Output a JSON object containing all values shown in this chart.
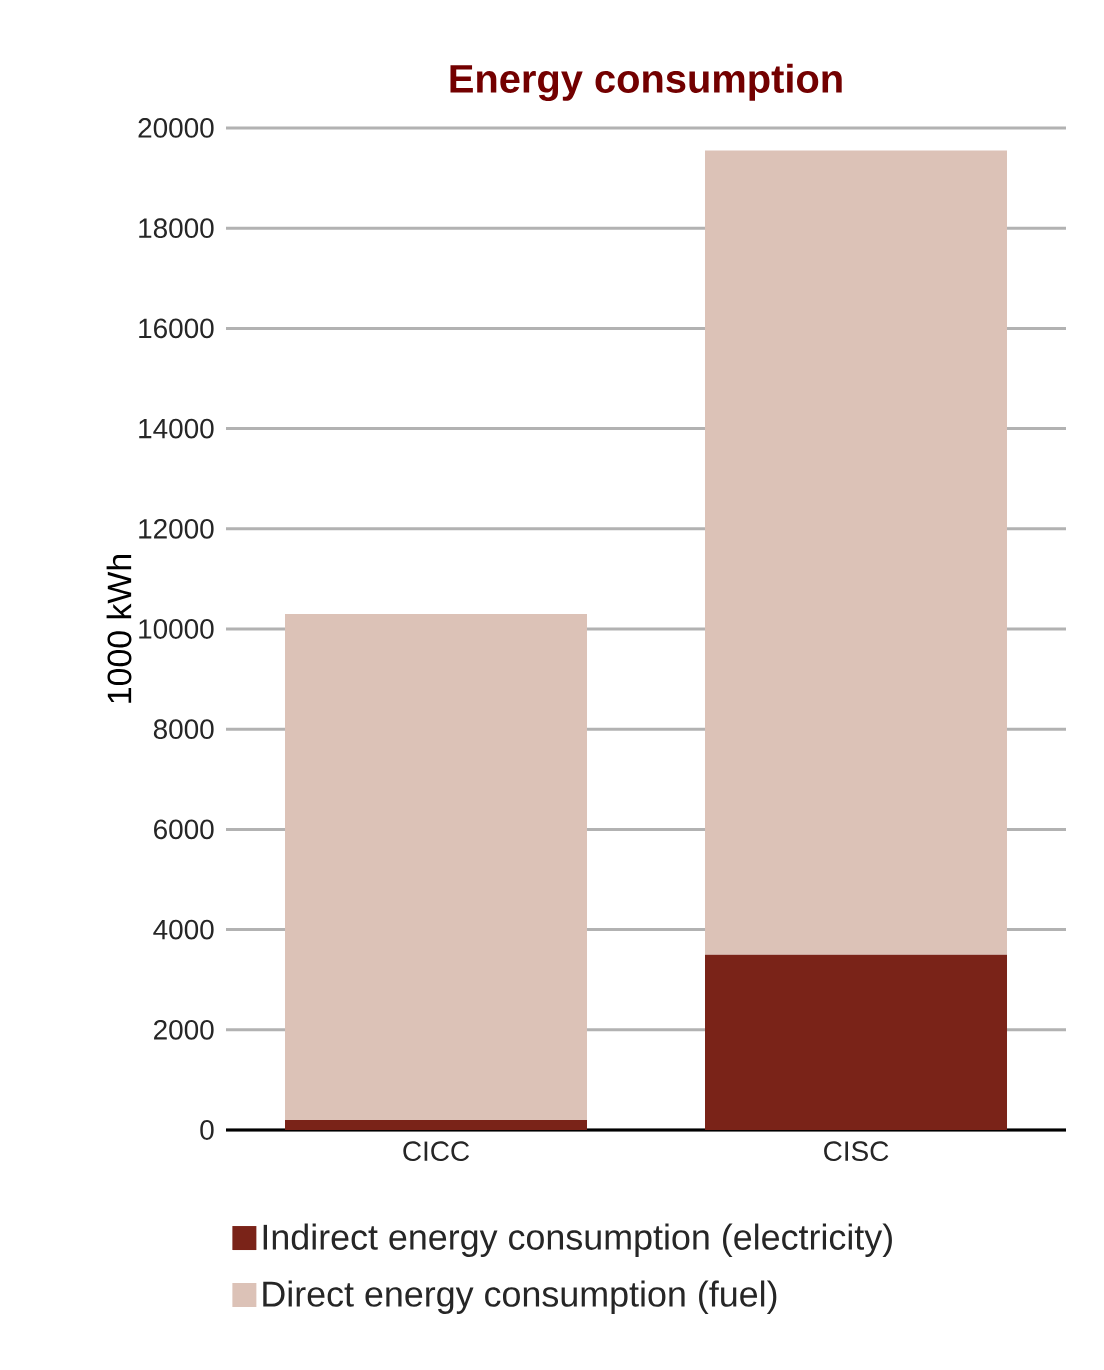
{
  "chart_data": {
    "type": "bar",
    "title": "Energy consumption",
    "ylabel": "1000 kWh",
    "categories": [
      "CICC",
      "CISC"
    ],
    "stacked": true,
    "series": [
      {
        "name": "Indirect energy consumption (electricity)",
        "color": "#7a2318",
        "values": [
          200,
          3500
        ]
      },
      {
        "name": "Direct energy consumption (fuel)",
        "color": "#dcc2b7",
        "values": [
          10100,
          16050
        ]
      }
    ],
    "ylim": [
      0,
      20000
    ],
    "yticks": [
      0,
      2000,
      4000,
      6000,
      8000,
      10000,
      12000,
      14000,
      16000,
      18000,
      20000
    ],
    "grid": "y",
    "legend": "bottom left"
  }
}
